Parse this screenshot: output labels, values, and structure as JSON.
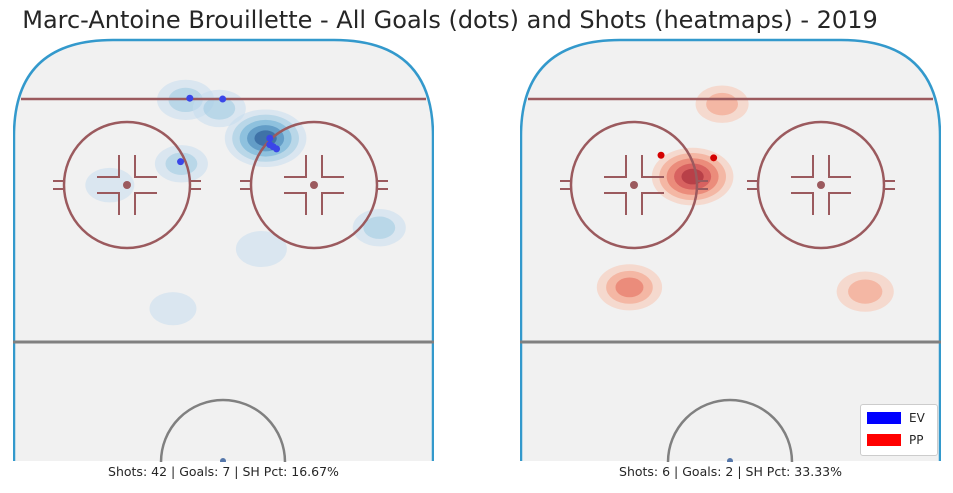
{
  "title": "Marc-Antoine Brouillette - All Goals (dots) and Shots (heatmaps) - 2019",
  "colors": {
    "ice": "#f1f1f1",
    "boards": "#3399cc",
    "red_line": "#9b5a5e",
    "center_line": "#808080",
    "ev": "#0000ff",
    "pp": "#ff0000"
  },
  "legend": [
    {
      "label": "EV",
      "color": "#0000ff"
    },
    {
      "label": "PP",
      "color": "#ff0000"
    }
  ],
  "chart_data": [
    {
      "type": "heatmap",
      "panel": "EV",
      "caption": "Shots: 42 | Goals: 7 | SH Pct: 16.67%",
      "stats": {
        "shots": 42,
        "goals": 7,
        "sh_pct": 16.67
      },
      "coordinates": "normalized rink coordinates (0-1 across rink width, 0-1 from top of visible half-rink)",
      "goals": [
        {
          "x": 0.42,
          "y": 0.146
        },
        {
          "x": 0.498,
          "y": 0.148
        },
        {
          "x": 0.398,
          "y": 0.295
        },
        {
          "x": 0.61,
          "y": 0.24
        },
        {
          "x": 0.618,
          "y": 0.26
        },
        {
          "x": 0.626,
          "y": 0.265
        },
        {
          "x": 0.61,
          "y": 0.255
        }
      ],
      "shot_density": [
        {
          "x": 0.41,
          "y": 0.15,
          "intensity": 0.4
        },
        {
          "x": 0.49,
          "y": 0.17,
          "intensity": 0.3
        },
        {
          "x": 0.6,
          "y": 0.24,
          "intensity": 1.0
        },
        {
          "x": 0.4,
          "y": 0.3,
          "intensity": 0.3
        },
        {
          "x": 0.23,
          "y": 0.35,
          "intensity": 0.2
        },
        {
          "x": 0.59,
          "y": 0.5,
          "intensity": 0.25
        },
        {
          "x": 0.87,
          "y": 0.45,
          "intensity": 0.3
        },
        {
          "x": 0.38,
          "y": 0.64,
          "intensity": 0.15
        }
      ]
    },
    {
      "type": "heatmap",
      "panel": "PP",
      "caption": "Shots: 6 | Goals: 2 | SH Pct: 33.33%",
      "stats": {
        "shots": 6,
        "goals": 2,
        "sh_pct": 33.33
      },
      "coordinates": "normalized rink coordinates (0-1 across rink width, 0-1 from top of visible half-rink)",
      "goals": [
        {
          "x": 0.335,
          "y": 0.28
        },
        {
          "x": 0.46,
          "y": 0.286
        }
      ],
      "shot_density": [
        {
          "x": 0.48,
          "y": 0.16,
          "intensity": 0.3
        },
        {
          "x": 0.41,
          "y": 0.33,
          "intensity": 1.0
        },
        {
          "x": 0.26,
          "y": 0.59,
          "intensity": 0.6
        },
        {
          "x": 0.82,
          "y": 0.6,
          "intensity": 0.4
        }
      ]
    }
  ]
}
